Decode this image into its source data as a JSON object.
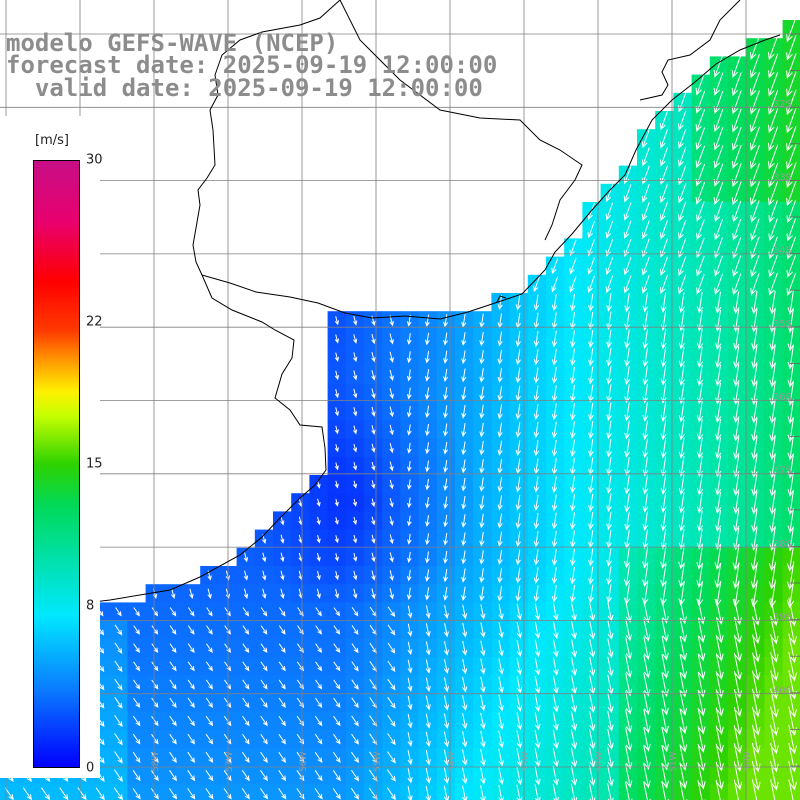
{
  "title": {
    "line1": "modelo GEFS-WAVE (NCEP)",
    "line2": "forecast date: 2025-09-19 12:00:00",
    "line3": "  valid date: 2025-09-19 12:00:00"
  },
  "colorbar": {
    "units": "[m/s]",
    "ticks": [
      "30",
      "22",
      "15",
      "8",
      "0"
    ],
    "tick_values": [
      30,
      22,
      15,
      8,
      0
    ],
    "range": [
      0,
      30
    ],
    "colors": [
      "#0000ff",
      "#0b7dff",
      "#00e8ff",
      "#00d95a",
      "#2ed200",
      "#c6ff00",
      "#fff000",
      "#ff9a00",
      "#ff3a00",
      "#ff0000",
      "#e8006e",
      "#c70e86"
    ]
  },
  "map": {
    "latitude_labels": [
      "32S",
      "33S",
      "34S",
      "35S",
      "36S",
      "37S",
      "38S",
      "39S",
      "40S"
    ],
    "longitude_labels": [
      "60W",
      "59W",
      "58W",
      "57W",
      "56W",
      "55W",
      "54W",
      "53W",
      "52W",
      "51W",
      "50W"
    ],
    "grid": true,
    "field": "wind speed",
    "colors": {
      "land": "#ffffff",
      "grid": "#808080",
      "coast": "#000000",
      "arrow": "#ffffff"
    }
  }
}
